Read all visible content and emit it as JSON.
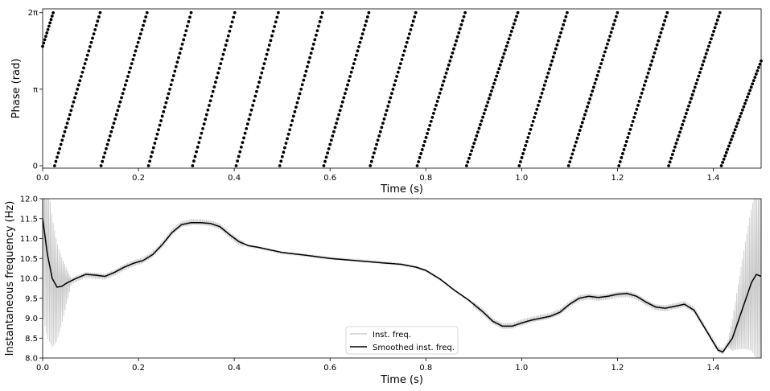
{
  "chart_data": [
    {
      "type": "scatter",
      "xlabel": "Time (s)",
      "ylabel": "Phase (rad)",
      "xlim": [
        0,
        1.5
      ],
      "ylim": [
        -0.1,
        6.44
      ],
      "xticks": [
        0,
        0.2,
        0.4,
        0.6,
        0.8,
        1.0,
        1.2,
        1.4
      ],
      "xtick_labels": [
        "0.0",
        "0.2",
        "0.4",
        "0.6",
        "0.8",
        "1.0",
        "1.2",
        "1.4"
      ],
      "yticks": [
        0,
        3.1416,
        6.2832
      ],
      "ytick_labels": [
        "0",
        "π",
        "2π"
      ],
      "grid": false,
      "marker_color": "#000000",
      "series": [
        {
          "points": [
            [
              0.0,
              4.9
            ],
            [
              0.022,
              6.28
            ]
          ],
          "cycle_starts": [
            0.025,
            0.122,
            0.221,
            0.313,
            0.404,
            0.495,
            0.587,
            0.684,
            0.782,
            0.885,
            0.995,
            1.098,
            1.203,
            1.307,
            1.417
          ],
          "cycle_ends": [
            0.12,
            0.218,
            0.31,
            0.401,
            0.492,
            0.584,
            0.681,
            0.779,
            0.882,
            0.992,
            1.095,
            1.2,
            1.304,
            1.414,
            1.5
          ],
          "end_phase_last": 4.3
        }
      ]
    },
    {
      "type": "line",
      "xlabel": "Time (s)",
      "ylabel": "Instantaneous frequency (Hz)",
      "xlim": [
        0,
        1.5
      ],
      "ylim": [
        8.0,
        12.0
      ],
      "xticks": [
        0,
        0.2,
        0.4,
        0.6,
        0.8,
        1.0,
        1.2,
        1.4
      ],
      "xtick_labels": [
        "0.0",
        "0.2",
        "0.4",
        "0.6",
        "0.8",
        "1.0",
        "1.2",
        "1.4"
      ],
      "yticks": [
        8.0,
        8.5,
        9.0,
        9.5,
        10.0,
        10.5,
        11.0,
        11.5,
        12.0
      ],
      "ytick_labels": [
        "8.0",
        "8.5",
        "9.0",
        "9.5",
        "10.0",
        "10.5",
        "11.0",
        "11.5",
        "12.0"
      ],
      "grid": false,
      "legend_position": "lower-center",
      "series": [
        {
          "name": "Inst. freq.",
          "color": "#c8c8c8",
          "style": "oscillating envelope around smoothed curve"
        },
        {
          "name": "Smoothed inst. freq.",
          "color": "#000000",
          "x": [
            0.0,
            0.01,
            0.02,
            0.03,
            0.04,
            0.05,
            0.07,
            0.09,
            0.11,
            0.13,
            0.15,
            0.17,
            0.19,
            0.21,
            0.23,
            0.25,
            0.27,
            0.29,
            0.31,
            0.33,
            0.35,
            0.37,
            0.39,
            0.41,
            0.43,
            0.45,
            0.5,
            0.55,
            0.6,
            0.65,
            0.7,
            0.75,
            0.78,
            0.8,
            0.83,
            0.86,
            0.89,
            0.92,
            0.94,
            0.96,
            0.98,
            1.0,
            1.02,
            1.04,
            1.06,
            1.08,
            1.1,
            1.12,
            1.14,
            1.16,
            1.18,
            1.2,
            1.22,
            1.24,
            1.26,
            1.28,
            1.3,
            1.32,
            1.34,
            1.36,
            1.38,
            1.4,
            1.41,
            1.42,
            1.44,
            1.46,
            1.48,
            1.49,
            1.5
          ],
          "y": [
            11.5,
            10.6,
            10.0,
            9.78,
            9.8,
            9.88,
            10.0,
            10.1,
            10.08,
            10.05,
            10.15,
            10.28,
            10.38,
            10.45,
            10.6,
            10.85,
            11.15,
            11.35,
            11.4,
            11.4,
            11.38,
            11.3,
            11.1,
            10.92,
            10.82,
            10.78,
            10.65,
            10.58,
            10.5,
            10.45,
            10.4,
            10.35,
            10.28,
            10.2,
            9.98,
            9.7,
            9.45,
            9.15,
            8.92,
            8.8,
            8.8,
            8.88,
            8.95,
            9.0,
            9.05,
            9.15,
            9.35,
            9.5,
            9.55,
            9.52,
            9.55,
            9.6,
            9.62,
            9.55,
            9.4,
            9.28,
            9.25,
            9.3,
            9.35,
            9.2,
            8.8,
            8.4,
            8.2,
            8.15,
            8.5,
            9.2,
            9.9,
            10.1,
            10.05
          ]
        }
      ]
    }
  ]
}
